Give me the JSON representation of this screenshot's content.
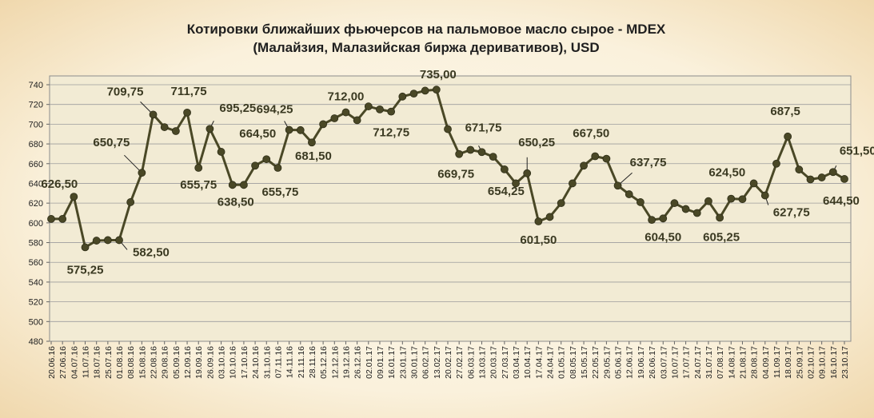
{
  "chart_data": {
    "type": "line",
    "title": [
      "Котировки ближайших фьючерсов на пальмовое масло сырое - MDEX",
      "(Малайзия, Малазийская биржа деривативов), USD"
    ],
    "ylim": [
      480,
      740
    ],
    "ystep": 20,
    "grid": true,
    "legend": "none",
    "colors": {
      "line": "#4a4826",
      "marker": "#4a4826",
      "grid": "#9d9d9d",
      "plot_bg": "#f2ebd4",
      "label": "#3b3a22"
    },
    "x": [
      "20.06.16",
      "27.06.16",
      "04.07.16",
      "11.07.16",
      "18.07.16",
      "25.07.16",
      "01.08.16",
      "08.08.16",
      "15.08.16",
      "22.08.16",
      "29.08.16",
      "05.09.16",
      "12.09.16",
      "19.09.16",
      "26.09.16",
      "03.10.16",
      "10.10.16",
      "17.10.16",
      "24.10.16",
      "31.10.16",
      "07.11.16",
      "14.11.16",
      "21.11.16",
      "28.11.16",
      "05.12.16",
      "12.12.16",
      "19.12.16",
      "26.12.16",
      "02.01.17",
      "09.01.17",
      "16.01.17",
      "23.01.17",
      "30.01.17",
      "06.02.17",
      "13.02.17",
      "20.02.17",
      "27.02.17",
      "06.03.17",
      "13.03.17",
      "20.03.17",
      "27.03.17",
      "03.04.17",
      "10.04.17",
      "17.04.17",
      "24.04.17",
      "01.05.17",
      "08.05.17",
      "15.05.17",
      "22.05.17",
      "29.05.17",
      "05.06.17",
      "12.06.17",
      "19.06.17",
      "26.06.17",
      "03.07.17",
      "10.07.17",
      "17.07.17",
      "24.07.17",
      "31.07.17",
      "07.08.17",
      "14.08.17",
      "21.08.17",
      "28.08.17",
      "04.09.17",
      "11.09.17",
      "18.09.17",
      "25.09.17",
      "02.10.17",
      "09.10.17",
      "16.10.17",
      "23.10.17"
    ],
    "values": [
      604,
      604,
      626.5,
      575.25,
      582,
      582.5,
      582.5,
      621,
      650.75,
      709.75,
      697,
      693,
      711.75,
      655.75,
      695.25,
      672,
      638.5,
      638.5,
      658,
      664.5,
      655.75,
      694.25,
      694,
      681.5,
      700,
      706,
      712,
      704,
      718,
      715,
      712.75,
      728,
      731,
      734,
      735,
      695,
      669.75,
      674,
      671.75,
      667,
      654.25,
      640,
      650.25,
      601.5,
      606,
      620,
      640,
      658,
      667.5,
      665,
      637.75,
      629,
      621,
      603,
      604.5,
      620,
      614,
      610,
      622,
      605.25,
      624.5,
      624,
      640,
      627.75,
      660,
      687.5,
      654,
      644,
      646,
      651.5,
      644.5
    ],
    "data_labels": [
      {
        "i": 2,
        "text": "626,50"
      },
      {
        "i": 3,
        "text": "575,25"
      },
      {
        "i": 6,
        "text": "582,50"
      },
      {
        "i": 8,
        "text": "650,75"
      },
      {
        "i": 9,
        "text": "709,75"
      },
      {
        "i": 12,
        "text": "711,75"
      },
      {
        "i": 13,
        "text": "655,75"
      },
      {
        "i": 14,
        "text": "695,25"
      },
      {
        "i": 16,
        "text": "638,50"
      },
      {
        "i": 19,
        "text": "664,50"
      },
      {
        "i": 20,
        "text": "655,75"
      },
      {
        "i": 21,
        "text": "694,25"
      },
      {
        "i": 23,
        "text": "681,50"
      },
      {
        "i": 26,
        "text": "712,00"
      },
      {
        "i": 30,
        "text": "712,75"
      },
      {
        "i": 34,
        "text": "735,00"
      },
      {
        "i": 36,
        "text": "669,75"
      },
      {
        "i": 38,
        "text": "671,75"
      },
      {
        "i": 40,
        "text": "654,25"
      },
      {
        "i": 42,
        "text": "650,25"
      },
      {
        "i": 43,
        "text": "601,50"
      },
      {
        "i": 48,
        "text": "667,50"
      },
      {
        "i": 50,
        "text": "637,75"
      },
      {
        "i": 54,
        "text": "604,50"
      },
      {
        "i": 59,
        "text": "605,25"
      },
      {
        "i": 60,
        "text": "624,50"
      },
      {
        "i": 63,
        "text": "627,75"
      },
      {
        "i": 65,
        "text": "687,5"
      },
      {
        "i": 69,
        "text": "651,50"
      },
      {
        "i": 70,
        "text": "644,50"
      }
    ]
  }
}
